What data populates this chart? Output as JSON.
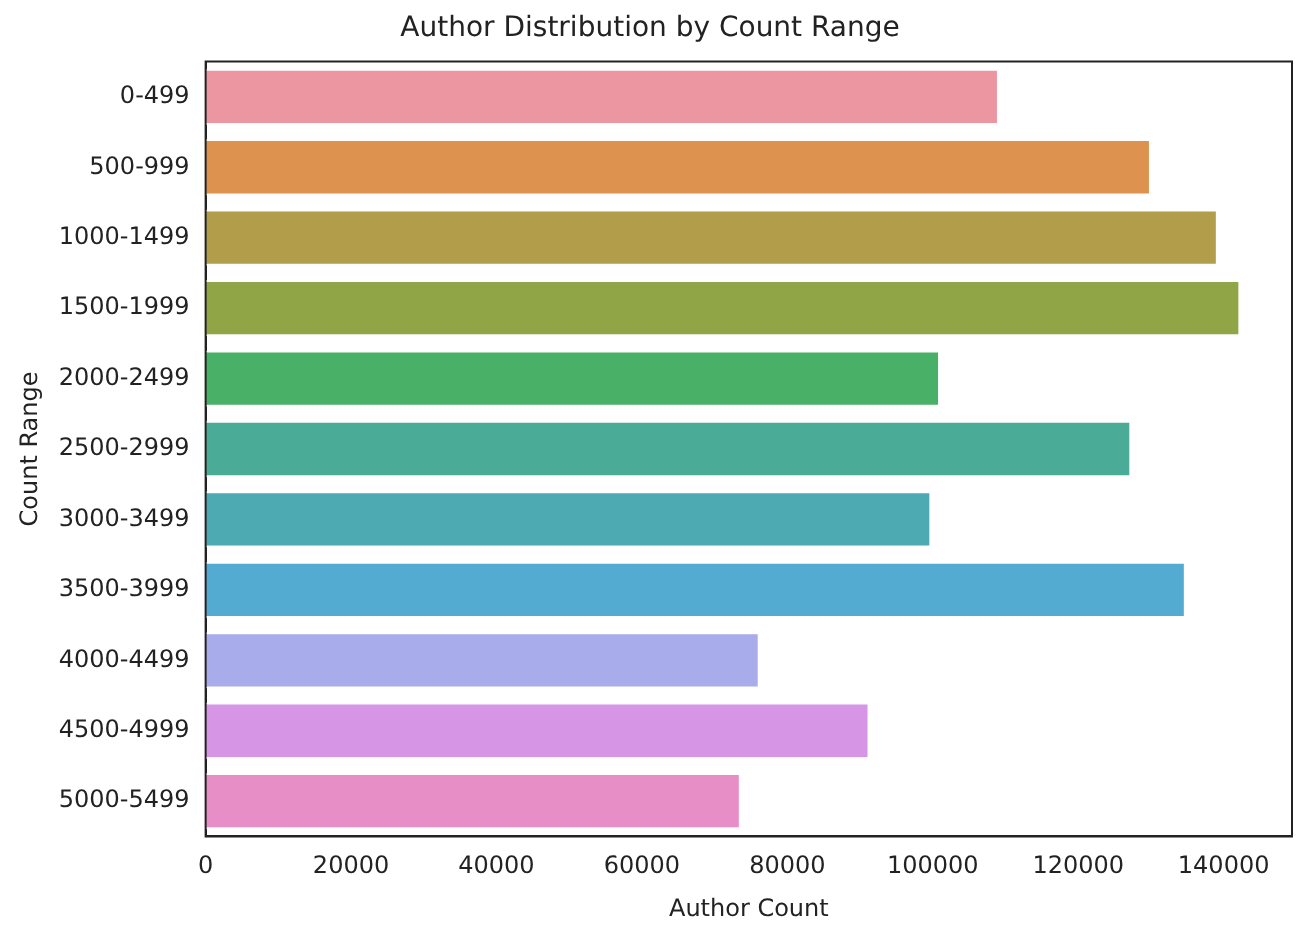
{
  "chart_data": {
    "type": "bar",
    "orientation": "horizontal",
    "title": "Author Distribution by Count Range",
    "xlabel": "Author Count",
    "ylabel": "Count Range",
    "categories": [
      "0-499",
      "500-999",
      "1000-1499",
      "1500-1999",
      "2000-2499",
      "2500-2999",
      "3000-3499",
      "3500-3999",
      "4000-4499",
      "4500-4999",
      "5000-5499"
    ],
    "values": [
      109100,
      130000,
      139200,
      142300,
      101000,
      127300,
      99800,
      134800,
      76200,
      91300,
      73600
    ],
    "colors": [
      "#eb96a1",
      "#dd924f",
      "#b29e4a",
      "#8fa546",
      "#48b067",
      "#4aac96",
      "#4da9b2",
      "#53abd2",
      "#a9aceb",
      "#d695e5",
      "#e88ec6"
    ],
    "xlim": [
      0,
      149400
    ],
    "xticks": [
      0,
      20000,
      40000,
      60000,
      80000,
      100000,
      120000,
      140000
    ],
    "grid": false,
    "legend": false
  }
}
